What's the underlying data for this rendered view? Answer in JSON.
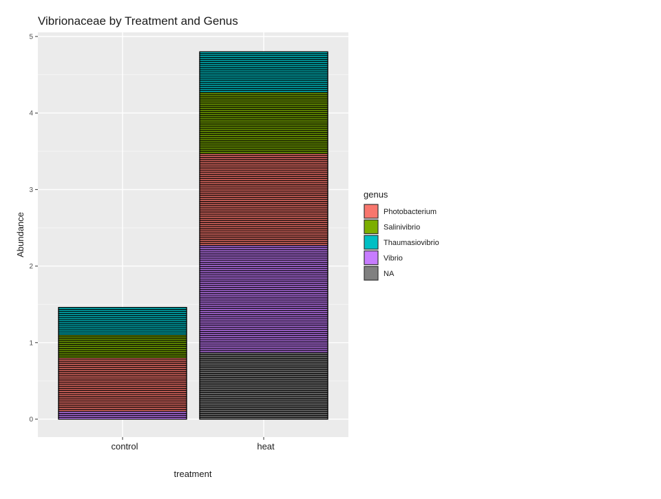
{
  "chart_data": {
    "type": "bar",
    "stacked": true,
    "title": "Vibrionaceae by Treatment and Genus",
    "xlabel": "treatment",
    "ylabel": "Abundance",
    "categories": [
      "control",
      "heat"
    ],
    "ylim": [
      0,
      5
    ],
    "yticks": [
      0,
      1,
      2,
      3,
      4,
      5
    ],
    "grid": true,
    "legend": {
      "title": "genus",
      "placement": "right",
      "entries": [
        "Photobacterium",
        "Salinivibrio",
        "Thaumasiovibrio",
        "Vibrio",
        "NA"
      ]
    },
    "colors": {
      "Photobacterium": "#F8766D",
      "Salinivibrio": "#7CAE00",
      "Thaumasiovibrio": "#00BFC4",
      "Vibrio": "#C77CFF",
      "NA": "#808080",
      "panel": "#EBEBEB",
      "outline": "#000000"
    },
    "series": [
      {
        "name": "NA",
        "values": [
          0.0,
          0.87
        ]
      },
      {
        "name": "Vibrio",
        "values": [
          0.1,
          1.4
        ]
      },
      {
        "name": "Photobacterium",
        "values": [
          0.7,
          1.2
        ]
      },
      {
        "name": "Salinivibrio",
        "values": [
          0.3,
          0.8
        ]
      },
      {
        "name": "Thaumasiovibrio",
        "values": [
          0.36,
          0.53
        ]
      }
    ],
    "totals": [
      1.46,
      4.8
    ]
  }
}
